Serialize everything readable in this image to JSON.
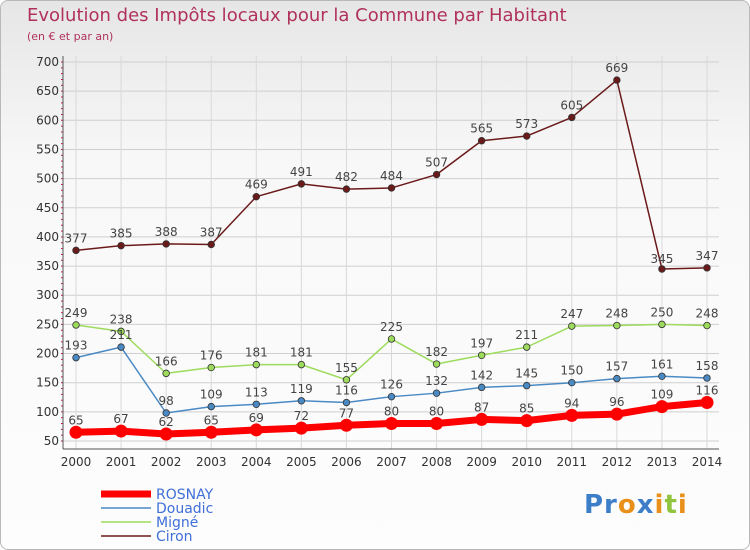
{
  "title": "Evolution des Impôts locaux pour la Commune par Habitant",
  "subtitle": "(en € et par an)",
  "logo": "Proxiti",
  "chart_data": {
    "type": "line",
    "title": "Evolution des Impôts locaux pour la Commune par Habitant",
    "subtitle": "(en € et par an)",
    "x": [
      "2000",
      "2001",
      "2002",
      "2003",
      "2004",
      "2005",
      "2006",
      "2007",
      "2008",
      "2009",
      "2010",
      "2011",
      "2012",
      "2013",
      "2014"
    ],
    "ylim": [
      50,
      700
    ],
    "yticks": [
      "50",
      "100",
      "150",
      "200",
      "250",
      "300",
      "350",
      "400",
      "450",
      "500",
      "550",
      "600",
      "650",
      "700"
    ],
    "series": [
      {
        "name": "ROSNAY",
        "color": "#ff0000",
        "values": [
          65,
          67,
          62,
          65,
          69,
          72,
          77,
          80,
          80,
          87,
          85,
          94,
          96,
          109,
          116
        ]
      },
      {
        "name": "Douadic",
        "color": "#4a8ac4",
        "values": [
          193,
          211,
          98,
          109,
          113,
          119,
          116,
          126,
          132,
          142,
          145,
          150,
          157,
          161,
          158
        ]
      },
      {
        "name": "Migné",
        "color": "#9ddb5c",
        "values": [
          249,
          238,
          166,
          176,
          181,
          181,
          155,
          225,
          182,
          197,
          211,
          247,
          248,
          250,
          248
        ]
      },
      {
        "name": "Ciron",
        "color": "#6b1a1a",
        "values": [
          377,
          385,
          388,
          387,
          469,
          491,
          482,
          484,
          507,
          565,
          573,
          605,
          669,
          345,
          347
        ]
      }
    ]
  }
}
